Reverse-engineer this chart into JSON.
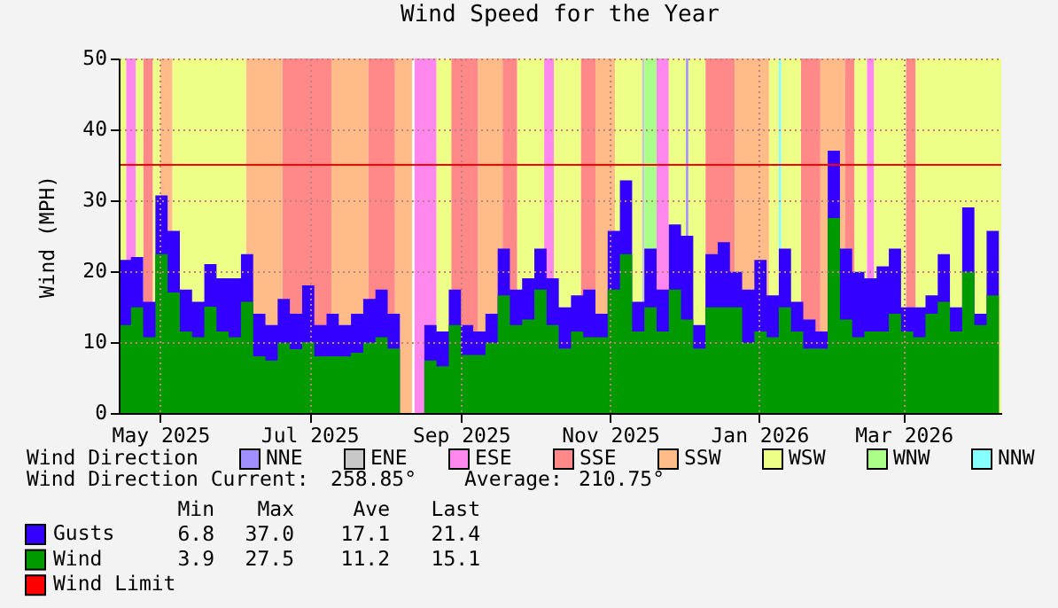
{
  "chart_data": {
    "type": "area",
    "title": "Wind Speed for the Year",
    "ylabel": "Wind (MPH)",
    "legend_title": "Wind Direction",
    "legend": "bottom",
    "grid": true,
    "xlim": [
      "2025-04-14",
      "2026-04-10"
    ],
    "xticks": [
      {
        "value": "2025-05-01",
        "label": "May 2025"
      },
      {
        "value": "2025-07-01",
        "label": "Jul 2025"
      },
      {
        "value": "2025-09-01",
        "label": "Sep 2025"
      },
      {
        "value": "2025-11-01",
        "label": "Nov 2025"
      },
      {
        "value": "2026-01-01",
        "label": "Jan 2026"
      },
      {
        "value": "2026-03-01",
        "label": "Mar 2026"
      }
    ],
    "ylim": [
      0,
      50
    ],
    "yticks": [
      0,
      10,
      20,
      30,
      40,
      50
    ],
    "x": [
      "2025-04-14",
      "2025-04-19",
      "2025-04-24",
      "2025-04-29",
      "2025-05-04",
      "2025-05-09",
      "2025-05-14",
      "2025-05-19",
      "2025-05-24",
      "2025-05-29",
      "2025-06-03",
      "2025-06-08",
      "2025-06-13",
      "2025-06-18",
      "2025-06-23",
      "2025-06-28",
      "2025-07-03",
      "2025-07-08",
      "2025-07-13",
      "2025-07-18",
      "2025-07-23",
      "2025-07-28",
      "2025-08-02",
      "2025-08-07",
      "2025-08-12",
      "2025-08-17",
      "2025-08-22",
      "2025-08-27",
      "2025-09-01",
      "2025-09-06",
      "2025-09-11",
      "2025-09-16",
      "2025-09-21",
      "2025-09-26",
      "2025-10-01",
      "2025-10-06",
      "2025-10-11",
      "2025-10-16",
      "2025-10-21",
      "2025-10-26",
      "2025-10-31",
      "2025-11-05",
      "2025-11-10",
      "2025-11-15",
      "2025-11-20",
      "2025-11-25",
      "2025-11-30",
      "2025-12-05",
      "2025-12-10",
      "2025-12-15",
      "2025-12-20",
      "2025-12-25",
      "2025-12-30",
      "2026-01-04",
      "2026-01-09",
      "2026-01-14",
      "2026-01-19",
      "2026-01-24",
      "2026-01-29",
      "2026-02-03",
      "2026-02-08",
      "2026-02-13",
      "2026-02-18",
      "2026-02-23",
      "2026-02-28",
      "2026-03-05",
      "2026-03-10",
      "2026-03-15",
      "2026-03-20",
      "2026-03-25",
      "2026-03-30",
      "2026-04-04",
      "2026-04-09"
    ],
    "series": [
      {
        "name": "Gusts",
        "color": "#3300ff",
        "values": [
          21.6,
          22,
          15.7,
          30.7,
          25.7,
          17.4,
          15.7,
          21,
          19,
          19,
          22.4,
          14,
          12.4,
          16.1,
          14,
          18,
          12.4,
          14,
          12.4,
          14,
          16.1,
          17.4,
          14,
          16,
          null,
          12.4,
          11.5,
          17.4,
          12.4,
          11.5,
          14,
          23.2,
          17.4,
          19,
          23.2,
          19,
          14.9,
          16.6,
          17.4,
          14,
          25.7,
          32.8,
          15.7,
          23.2,
          17.4,
          26.6,
          25,
          12.4,
          22.4,
          24.1,
          19.9,
          17.4,
          21.6,
          16.6,
          23.2,
          15.7,
          13.2,
          11.5,
          37.0,
          23.2,
          19.9,
          19,
          20.7,
          23.2,
          14.9,
          14.9,
          16.6,
          22.4,
          14.9,
          29,
          14,
          25.7,
          21.4
        ]
      },
      {
        "name": "Wind",
        "color": "#009900",
        "values": [
          12.4,
          14.9,
          10.7,
          22.4,
          17,
          11.5,
          10.7,
          15,
          11.5,
          10.7,
          15.7,
          8,
          7.4,
          9.9,
          9,
          10,
          8,
          8,
          8,
          8.5,
          9.9,
          10.7,
          9.1,
          10,
          null,
          7.4,
          6.6,
          12.4,
          8.2,
          8.2,
          9.9,
          16.6,
          12.4,
          13.2,
          17.4,
          12.4,
          9.1,
          11.5,
          10.7,
          10.7,
          17.4,
          22.4,
          11.5,
          14.9,
          11.5,
          17.4,
          13.2,
          9.1,
          14.9,
          14.9,
          14.9,
          9.9,
          11.5,
          10.7,
          14.9,
          11.5,
          9.1,
          9.1,
          27.5,
          13.2,
          10.7,
          11.5,
          11.5,
          14,
          11.5,
          10.7,
          14,
          15.7,
          11.5,
          19.9,
          12.4,
          16.6,
          15.1
        ]
      }
    ],
    "ref_lines": [
      {
        "axis": "y",
        "value": 35,
        "label": "Wind Limit",
        "color": "#ff0000"
      }
    ],
    "bands": [
      {
        "axis": "x",
        "from": "2025-12-02",
        "to": "2025-12-03",
        "label": "NNE",
        "color": "#a090ff"
      },
      {
        "axis": "x",
        "from": "2025-11-14",
        "to": "2025-11-15",
        "label": "ENE",
        "color": "#c8c8c8"
      },
      {
        "axis": "x",
        "from": "2025-04-17",
        "to": "2025-04-21",
        "label": "ESE",
        "color": "#ff88ee"
      },
      {
        "axis": "x",
        "from": "2025-08-13",
        "to": "2025-08-22",
        "color": "#ff88ee"
      },
      {
        "axis": "x",
        "from": "2025-10-05",
        "to": "2025-10-09",
        "color": "#ff88ee"
      },
      {
        "axis": "x",
        "from": "2025-11-20",
        "to": "2025-11-25",
        "color": "#ff88ee"
      },
      {
        "axis": "x",
        "from": "2026-02-14",
        "to": "2026-02-17",
        "color": "#ff88ee"
      },
      {
        "axis": "x",
        "from": "2025-04-24",
        "to": "2025-04-28",
        "label": "SSE",
        "color": "#ff8888"
      },
      {
        "axis": "x",
        "from": "2025-06-20",
        "to": "2025-07-10",
        "color": "#ff8888"
      },
      {
        "axis": "x",
        "from": "2025-07-25",
        "to": "2025-08-05",
        "color": "#ff8888"
      },
      {
        "axis": "x",
        "from": "2025-08-28",
        "to": "2025-09-08",
        "color": "#ff8888"
      },
      {
        "axis": "x",
        "from": "2025-09-18",
        "to": "2025-09-24",
        "color": "#ff8888"
      },
      {
        "axis": "x",
        "from": "2025-10-20",
        "to": "2025-10-26",
        "color": "#ff8888"
      },
      {
        "axis": "x",
        "from": "2025-12-10",
        "to": "2025-12-22",
        "color": "#ff8888"
      },
      {
        "axis": "x",
        "from": "2026-01-18",
        "to": "2026-01-26",
        "color": "#ff8888"
      },
      {
        "axis": "x",
        "from": "2026-02-05",
        "to": "2026-02-09",
        "color": "#ff8888"
      },
      {
        "axis": "x",
        "from": "2026-03-02",
        "to": "2026-03-06",
        "color": "#ff8888"
      },
      {
        "axis": "x",
        "from": "2025-05-01",
        "to": "2025-05-06",
        "label": "SSW",
        "color": "#ffbb88"
      },
      {
        "axis": "x",
        "from": "2025-06-05",
        "to": "2025-06-20",
        "color": "#ffbb88"
      },
      {
        "axis": "x",
        "from": "2025-07-10",
        "to": "2025-07-25",
        "color": "#ffbb88"
      },
      {
        "axis": "x",
        "from": "2025-08-05",
        "to": "2025-08-12",
        "color": "#ffbb88"
      },
      {
        "axis": "x",
        "from": "2025-09-08",
        "to": "2025-09-18",
        "color": "#ffbb88"
      },
      {
        "axis": "x",
        "from": "2025-10-26",
        "to": "2025-11-03",
        "color": "#ffbb88"
      },
      {
        "axis": "x",
        "from": "2025-12-22",
        "to": "2026-01-05",
        "color": "#ffbb88"
      },
      {
        "axis": "x",
        "from": "2026-01-26",
        "to": "2026-02-05",
        "color": "#ffbb88"
      },
      {
        "axis": "x",
        "from": "2025-04-14",
        "to": "2025-04-17",
        "color": "#eeff88"
      },
      {
        "axis": "x",
        "from": "2025-04-21",
        "to": "2025-04-24",
        "color": "#eeff88"
      },
      {
        "axis": "x",
        "from": "2025-04-28",
        "to": "2025-05-01",
        "color": "#eeff88"
      },
      {
        "axis": "x",
        "from": "2025-05-06",
        "to": "2025-06-05",
        "label": "WSW",
        "color": "#eeff88"
      },
      {
        "axis": "x",
        "from": "2025-08-22",
        "to": "2025-08-28",
        "color": "#eeff88"
      },
      {
        "axis": "x",
        "from": "2025-09-24",
        "to": "2025-10-05",
        "color": "#eeff88"
      },
      {
        "axis": "x",
        "from": "2025-10-09",
        "to": "2025-10-20",
        "color": "#eeff88"
      },
      {
        "axis": "x",
        "from": "2025-11-03",
        "to": "2025-11-14",
        "color": "#eeff88"
      },
      {
        "axis": "x",
        "from": "2025-11-25",
        "to": "2025-12-02",
        "color": "#eeff88"
      },
      {
        "axis": "x",
        "from": "2025-12-03",
        "to": "2025-12-10",
        "color": "#eeff88"
      },
      {
        "axis": "x",
        "from": "2026-01-05",
        "to": "2026-01-09",
        "color": "#eeff88"
      },
      {
        "axis": "x",
        "from": "2026-01-10",
        "to": "2026-01-18",
        "color": "#eeff88"
      },
      {
        "axis": "x",
        "from": "2026-02-09",
        "to": "2026-02-14",
        "color": "#eeff88"
      },
      {
        "axis": "x",
        "from": "2026-02-17",
        "to": "2026-03-02",
        "color": "#eeff88"
      },
      {
        "axis": "x",
        "from": "2026-03-06",
        "to": "2026-04-10",
        "color": "#eeff88"
      },
      {
        "axis": "x",
        "from": "2025-11-15",
        "to": "2025-11-20",
        "label": "WNW",
        "color": "#aaff88"
      },
      {
        "axis": "x",
        "from": "2026-01-09",
        "to": "2026-01-10",
        "label": "NNW",
        "color": "#88ffff"
      }
    ],
    "annotations": [
      "Wind Direction Current:",
      "258.85°",
      "Average:",
      "210.75°",
      "Min",
      "Max",
      "Ave",
      "Last",
      "6.8",
      "37.0",
      "17.1",
      "21.4",
      "3.9",
      "27.5",
      "11.2",
      "15.1"
    ]
  }
}
